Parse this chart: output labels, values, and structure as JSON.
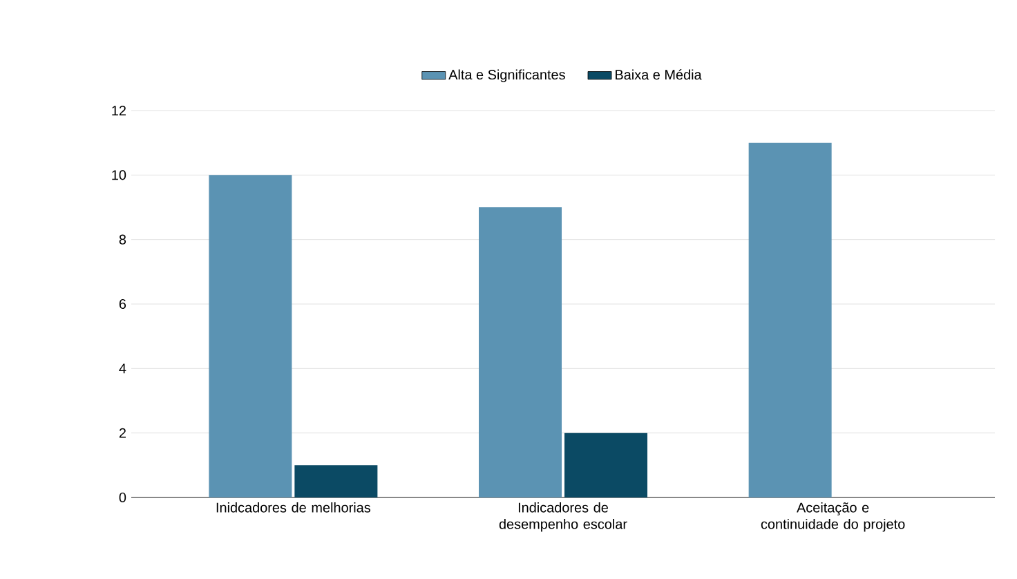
{
  "chart_data": {
    "type": "bar",
    "categories": [
      "Inidcadores de melhorias",
      "Indicadores de desempenho escolar",
      "Aceitação e continuidade do projeto"
    ],
    "series": [
      {
        "name": "Alta e Significantes",
        "color": "#5b93b3",
        "values": [
          10,
          9,
          11
        ]
      },
      {
        "name": "Baixa e Média",
        "color": "#0b4a64",
        "values": [
          1,
          2,
          0
        ]
      }
    ],
    "ylim": [
      0,
      12
    ],
    "yticks": [
      0,
      2,
      4,
      6,
      8,
      10,
      12
    ],
    "grid": "y",
    "legend": "top"
  }
}
